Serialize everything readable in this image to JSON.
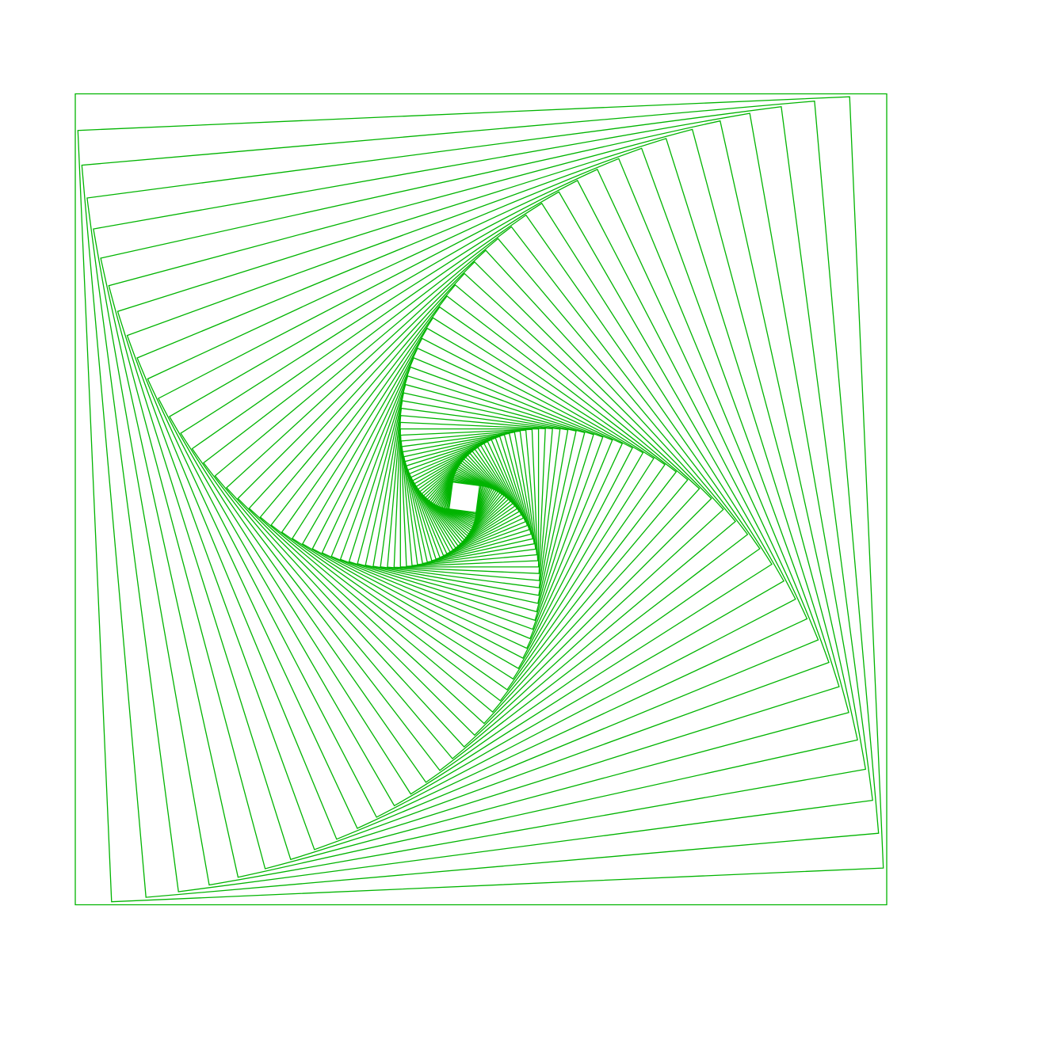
{
  "artwork": {
    "type": "rotating-square-spiral",
    "stroke_color": "#00b400",
    "background_color": "#ffffff",
    "square_count": 70,
    "turn_per_square_deg": 2.5,
    "shrink_per_square": 0.952
  }
}
